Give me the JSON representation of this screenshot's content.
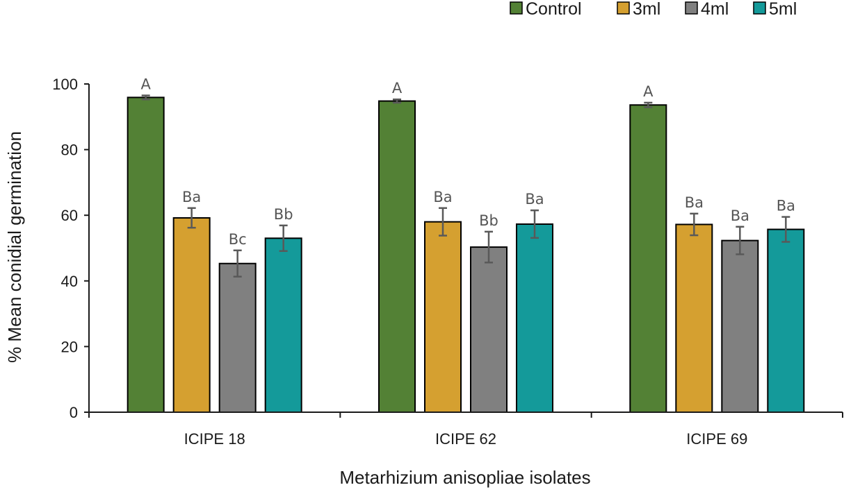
{
  "chart_data": {
    "type": "bar",
    "title": "",
    "xlabel": "Metarhizium anisopliae isolates",
    "ylabel": "% Mean conidial germination",
    "ylim": [
      0,
      100
    ],
    "yticks": [
      0,
      20,
      40,
      60,
      80,
      100
    ],
    "categories": [
      "ICIPE 18",
      "ICIPE 62",
      "ICIPE 69"
    ],
    "legend_position": "top-right",
    "series": [
      {
        "name": "Control",
        "color": "#538135",
        "values": [
          95.9,
          94.8,
          93.6
        ],
        "errors": [
          0.6,
          0.5,
          0.7
        ],
        "labels": [
          "A",
          "A",
          "A"
        ]
      },
      {
        "name": "3ml",
        "color": "#D5A030",
        "values": [
          59.2,
          58.0,
          57.2
        ],
        "errors": [
          3.0,
          4.2,
          3.3
        ],
        "labels": [
          "Ba",
          "Ba",
          "Ba"
        ]
      },
      {
        "name": "4ml",
        "color": "#808080",
        "values": [
          45.3,
          50.3,
          52.3
        ],
        "errors": [
          4.0,
          4.7,
          4.2
        ],
        "labels": [
          "Bc",
          "Bb",
          "Ba"
        ]
      },
      {
        "name": "5ml",
        "color": "#149A9A",
        "values": [
          53.0,
          57.3,
          55.7
        ],
        "errors": [
          3.9,
          4.2,
          3.8
        ],
        "labels": [
          "Bb",
          "Ba",
          "Ba"
        ]
      }
    ]
  }
}
